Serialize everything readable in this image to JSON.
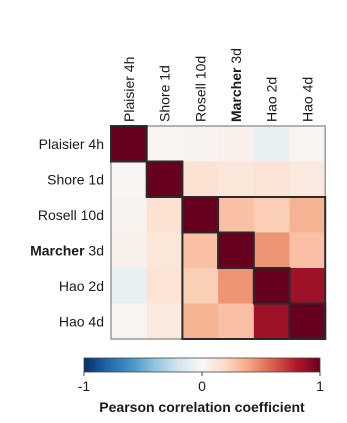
{
  "chart_data": {
    "type": "heatmap",
    "rows": [
      {
        "label": "Plaisier 4h",
        "bold": "",
        "rest": ""
      },
      {
        "label": "Shore 1d",
        "bold": "",
        "rest": ""
      },
      {
        "label": "Rosell 10d",
        "bold": "",
        "rest": ""
      },
      {
        "label": "Marcher 3d",
        "bold": "Marcher",
        "rest": " 3d"
      },
      {
        "label": "Hao 2d",
        "bold": "",
        "rest": ""
      },
      {
        "label": "Hao 4d",
        "bold": "",
        "rest": ""
      }
    ],
    "columns": [
      {
        "label": "Plaisier 4h",
        "bold": "",
        "rest": ""
      },
      {
        "label": "Shore 1d",
        "bold": "",
        "rest": ""
      },
      {
        "label": "Rosell 10d",
        "bold": "",
        "rest": ""
      },
      {
        "label": "Marcher 3d",
        "bold": "Marcher",
        "rest": " 3d"
      },
      {
        "label": "Hao 2d",
        "bold": "",
        "rest": ""
      },
      {
        "label": "Hao 4d",
        "bold": "",
        "rest": ""
      }
    ],
    "values": [
      [
        1.0,
        0.02,
        0.03,
        0.05,
        -0.08,
        0.02
      ],
      [
        0.02,
        1.0,
        0.15,
        0.12,
        0.14,
        0.1
      ],
      [
        0.03,
        0.15,
        1.0,
        0.3,
        0.25,
        0.35
      ],
      [
        0.05,
        0.12,
        0.3,
        1.0,
        0.45,
        0.3
      ],
      [
        -0.08,
        0.14,
        0.25,
        0.45,
        1.0,
        0.85
      ],
      [
        0.02,
        0.1,
        0.35,
        0.3,
        0.85,
        1.0
      ]
    ],
    "clusters": [
      {
        "start": 2,
        "end": 5
      }
    ],
    "colorbar": {
      "min": -1,
      "max": 1,
      "ticks": [
        -1,
        0,
        1
      ],
      "label": "Pearson correlation coefficient",
      "colors": [
        "#053061",
        "#2166ac",
        "#4393c3",
        "#92c5de",
        "#d1e5f0",
        "#f7f7f7",
        "#fddbc7",
        "#f4a582",
        "#d6604d",
        "#b2182b",
        "#67001f"
      ]
    }
  }
}
